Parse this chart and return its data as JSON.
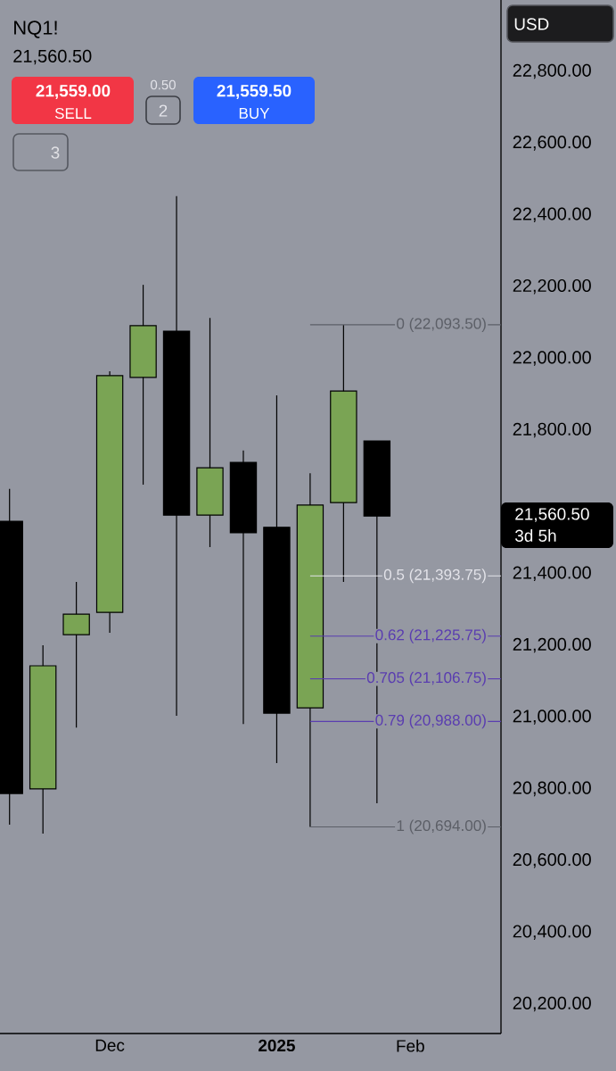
{
  "chart_data": {
    "type": "candlestick",
    "title": "NQ1!",
    "subtitle": "21,560.50",
    "x": [
      "2024-11-11",
      "2024-11-18",
      "2024-11-25",
      "2024-12-02",
      "2024-12-09",
      "2024-12-16",
      "2024-12-23",
      "2024-12-30",
      "2025-01-06",
      "2025-01-13",
      "2025-01-20",
      "2025-01-27"
    ],
    "ohlc": [
      [
        21546,
        21636,
        20700,
        20787
      ],
      [
        20800,
        21200,
        20675,
        21143
      ],
      [
        21230,
        21377,
        20971,
        21287
      ],
      [
        21292,
        21964,
        21235,
        21952
      ],
      [
        21947,
        22205,
        21648,
        22091
      ],
      [
        22076,
        22452,
        21004,
        21563
      ],
      [
        21563,
        22113,
        21474,
        21695
      ],
      [
        21710,
        21743,
        20981,
        21514
      ],
      [
        21529,
        21897,
        20872,
        21011
      ],
      [
        21026,
        21680,
        20694,
        21591
      ],
      [
        21598,
        22093.5,
        21377,
        21909
      ],
      [
        21770,
        21770,
        20760,
        21560.5
      ]
    ],
    "colors": [
      "#000000",
      "#7aa454",
      "#7aa454",
      "#7aa454",
      "#7aa454",
      "#000000",
      "#7aa454",
      "#000000",
      "#000000",
      "#7aa454",
      "#7aa454",
      "#000000"
    ],
    "xlim": [
      "2024-11-09",
      "2025-02-22"
    ],
    "xticks": [
      {
        "value": "2024-12-02",
        "label": "Dec"
      },
      {
        "value": "2025-01-06",
        "label": "2025"
      },
      {
        "value": "2025-02-03",
        "label": "Feb"
      }
    ],
    "ylim": [
      20118,
      22999
    ],
    "yticks": [
      {
        "value": 20200,
        "label": "20,200.00"
      },
      {
        "value": 20400,
        "label": "20,400.00"
      },
      {
        "value": 20600,
        "label": "20,600.00"
      },
      {
        "value": 20800,
        "label": "20,800.00"
      },
      {
        "value": 21000,
        "label": "21,000.00"
      },
      {
        "value": 21200,
        "label": "21,200.00"
      },
      {
        "value": 21400,
        "label": "21,400.00"
      },
      {
        "value": 21800,
        "label": "21,800.00"
      },
      {
        "value": 22000,
        "label": "22,000.00"
      },
      {
        "value": 22200,
        "label": "22,200.00"
      },
      {
        "value": 22400,
        "label": "22,400.00"
      },
      {
        "value": 22600,
        "label": "22,600.00"
      },
      {
        "value": 22800,
        "label": "22,800.00"
      }
    ],
    "ref_lines": [
      {
        "axis": "y",
        "value": 22093.5,
        "label": "0 (22,093.50)",
        "color": "#5c5f67"
      },
      {
        "axis": "y",
        "value": 21393.75,
        "label": "0.5 (21,393.75)",
        "color": "#e4e4ea"
      },
      {
        "axis": "y",
        "value": 21225.75,
        "label": "0.62 (21,225.75)",
        "color": "#5a3db0"
      },
      {
        "axis": "y",
        "value": 21106.75,
        "label": "0.705 (21,106.75)",
        "color": "#5a3db0"
      },
      {
        "axis": "y",
        "value": 20988.0,
        "label": "0.79 (20,988.00)",
        "color": "#5a3db0"
      },
      {
        "axis": "y",
        "value": 20694.0,
        "label": "1 (20,694.00)",
        "color": "#5c5f67"
      }
    ],
    "annotations": [
      "21,559.00",
      "SELL",
      "0.50",
      "2",
      "21,559.50",
      "BUY",
      "3",
      "USD",
      "21,560.50",
      "3d 5h"
    ]
  }
}
